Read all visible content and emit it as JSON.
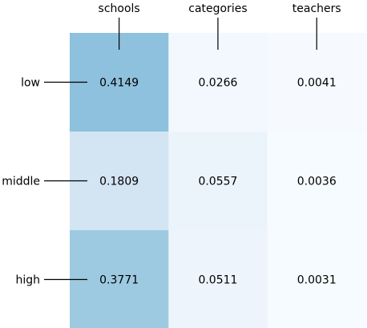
{
  "chart_data": {
    "type": "heatmap",
    "columns": [
      "schools",
      "categories",
      "teachers"
    ],
    "rows": [
      "low",
      "middle",
      "high"
    ],
    "values": [
      [
        0.4149,
        0.0266,
        0.0041
      ],
      [
        0.1809,
        0.0557,
        0.0036
      ],
      [
        0.3771,
        0.0511,
        0.0031
      ]
    ],
    "value_labels": [
      [
        "0.4149",
        "0.0266",
        "0.0041"
      ],
      [
        "0.1809",
        "0.0557",
        "0.0036"
      ],
      [
        "0.3771",
        "0.0511",
        "0.0031"
      ]
    ],
    "colormap": "Blues",
    "x_axis_position": "top",
    "grid": false,
    "legend": "none"
  }
}
